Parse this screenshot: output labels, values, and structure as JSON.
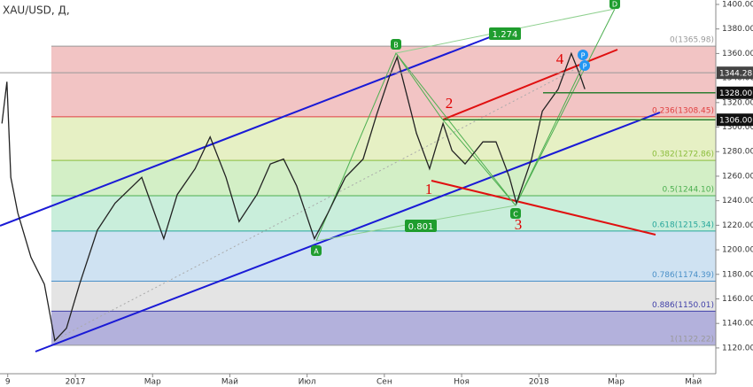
{
  "chart_data": {
    "type": "line",
    "title": "XAU/USD, Д,",
    "color": "#222",
    "x": [
      -1.9,
      -1.77,
      -1.67,
      -1.49,
      -1.15,
      -0.8,
      -0.53,
      -0.23,
      0.11,
      0.57,
      1.03,
      1.72,
      2.29,
      2.64,
      3.1,
      3.49,
      3.9,
      4.24,
      4.7,
      5.05,
      5.39,
      5.73,
      6.19,
      6.54,
      6.99,
      7.45,
      7.8,
      8.14,
      8.33,
      8.6,
      8.83,
      9.17,
      9.52,
      9.75,
      10.09,
      10.55,
      10.89,
      11.24,
      11.42,
      11.81,
      12.09,
      12.5,
      12.84,
      13.07,
      13.19
    ],
    "values": [
      1303,
      1337,
      1259,
      1230,
      1194,
      1172,
      1126,
      1136,
      1172,
      1216,
      1238,
      1259,
      1209,
      1245,
      1266,
      1292,
      1259,
      1223,
      1245,
      1270,
      1274,
      1252,
      1209,
      1230,
      1259,
      1274,
      1310,
      1342,
      1357,
      1324,
      1295,
      1266,
      1303,
      1281,
      1270,
      1288,
      1288,
      1259,
      1238,
      1274,
      1313,
      1331,
      1360,
      1342,
      1331
    ],
    "xlim": [
      -1.95,
      16.58
    ],
    "ylim": [
      1099,
      1403.6
    ],
    "xticks": [
      {
        "value": -1.75,
        "label": "9"
      },
      {
        "value": 0,
        "label": "2017"
      },
      {
        "value": 2,
        "label": "Мар"
      },
      {
        "value": 4,
        "label": "Май"
      },
      {
        "value": 6,
        "label": "Июл"
      },
      {
        "value": 8,
        "label": "Сен"
      },
      {
        "value": 10,
        "label": "Ноя"
      },
      {
        "value": 12,
        "label": "2018"
      },
      {
        "value": 14,
        "label": "Мар"
      },
      {
        "value": 16,
        "label": "Май"
      }
    ],
    "yticks": [
      {
        "value": 1120,
        "label": "1120.00"
      },
      {
        "value": 1140,
        "label": "1140.00"
      },
      {
        "value": 1160,
        "label": "1160.00"
      },
      {
        "value": 1180,
        "label": "1180.00"
      },
      {
        "value": 1200,
        "label": "1200.00"
      },
      {
        "value": 1220,
        "label": "1220.00"
      },
      {
        "value": 1240,
        "label": "1240.00"
      },
      {
        "value": 1260,
        "label": "1260.00"
      },
      {
        "value": 1280,
        "label": "1280.00"
      },
      {
        "value": 1300,
        "label": "1300.00"
      },
      {
        "value": 1320,
        "label": "1320.00"
      },
      {
        "value": 1340,
        "label": "1340.00"
      },
      {
        "value": 1360,
        "label": "1360.00"
      },
      {
        "value": 1380,
        "label": "1380.00"
      },
      {
        "value": 1400,
        "label": "1400.00"
      }
    ],
    "fib_levels": [
      {
        "value": 1365.98,
        "label": "0(1365.98)",
        "color": "#999999",
        "band": "#f2c4c4"
      },
      {
        "value": 1308.45,
        "label": "0.236(1308.45)",
        "color": "#e04040",
        "band": "#e6f0c4"
      },
      {
        "value": 1272.86,
        "label": "0.382(1272.86)",
        "color": "#8bbd3c",
        "band": "#d3efc6"
      },
      {
        "value": 1244.1,
        "label": "0.5(1244.10)",
        "color": "#4caf50",
        "band": "#c9eedb"
      },
      {
        "value": 1215.34,
        "label": "0.618(1215.34)",
        "color": "#26a69a",
        "band": "#cfe2f2"
      },
      {
        "value": 1174.39,
        "label": "0.786(1174.39)",
        "color": "#4a90c8",
        "band": "#e4e4e4"
      },
      {
        "value": 1150.01,
        "label": "0.886(1150.01)",
        "color": "#3f3fa8",
        "band": "#b3b1dc"
      },
      {
        "value": 1122.22,
        "label": "1(1122.22)",
        "color": "#999999"
      }
    ],
    "price_labels": [
      {
        "value": 1344.28,
        "label": "1344.28",
        "color": "#444"
      },
      {
        "value": 1328.0,
        "label": "1328.00",
        "color": "#111"
      },
      {
        "value": 1306.0,
        "label": "1306.00",
        "color": "#111"
      }
    ],
    "annotations": [
      "A",
      "B",
      "C",
      "D",
      "1",
      "2",
      "3",
      "4",
      "0.801",
      "1.274",
      "P",
      "P"
    ]
  }
}
